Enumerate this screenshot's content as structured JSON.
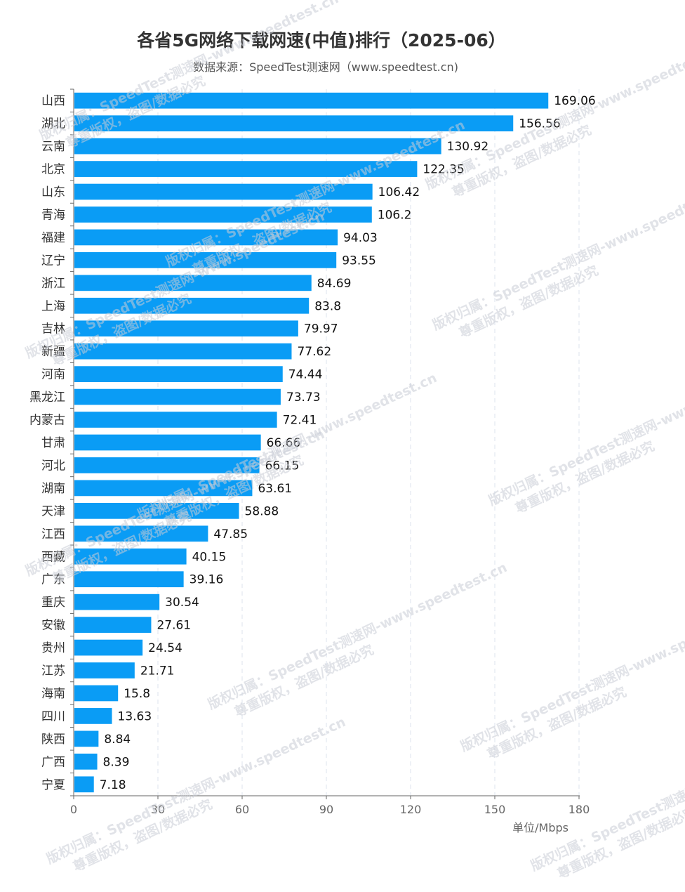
{
  "chart_data": {
    "type": "bar",
    "orientation": "horizontal",
    "title": "各省5G网络下载网速(中值)排行（2025-06）",
    "subtitle": "数据来源：SpeedTest测速网（www.speedtest.cn)",
    "unit_label": "单位/Mbps",
    "xlim": [
      0,
      180
    ],
    "xticks": [
      0,
      30,
      60,
      90,
      120,
      150,
      180
    ],
    "grid": "vertical-dashed",
    "bar_color": "#0a9cf5",
    "categories": [
      "山西",
      "湖北",
      "云南",
      "北京",
      "山东",
      "青海",
      "福建",
      "辽宁",
      "浙江",
      "上海",
      "吉林",
      "新疆",
      "河南",
      "黑龙江",
      "内蒙古",
      "甘肃",
      "河北",
      "湖南",
      "天津",
      "江西",
      "西藏",
      "广东",
      "重庆",
      "安徽",
      "贵州",
      "江苏",
      "海南",
      "四川",
      "陕西",
      "广西",
      "宁夏"
    ],
    "values": [
      169.06,
      156.56,
      130.92,
      122.35,
      106.42,
      106.2,
      94.03,
      93.55,
      84.69,
      83.8,
      79.97,
      77.62,
      74.44,
      73.73,
      72.41,
      66.66,
      66.15,
      63.61,
      58.88,
      47.85,
      40.15,
      39.16,
      30.54,
      27.61,
      24.54,
      21.71,
      15.8,
      13.63,
      8.84,
      8.39,
      7.18
    ],
    "value_labels": [
      "169.06",
      "156.56",
      "130.92",
      "122.35",
      "106.42",
      "106.2",
      "94.03",
      "93.55",
      "84.69",
      "83.8",
      "79.97",
      "77.62",
      "74.44",
      "73.73",
      "72.41",
      "66.66",
      "66.15",
      "63.61",
      "58.88",
      "47.85",
      "40.15",
      "39.16",
      "30.54",
      "27.61",
      "24.54",
      "21.71",
      "15.8",
      "13.63",
      "8.84",
      "8.39",
      "7.18"
    ]
  },
  "watermark": {
    "line1": "版权归属：SpeedTest测速网-www.speedtest.cn",
    "line2": "尊重版权，盗图/数据必究"
  }
}
